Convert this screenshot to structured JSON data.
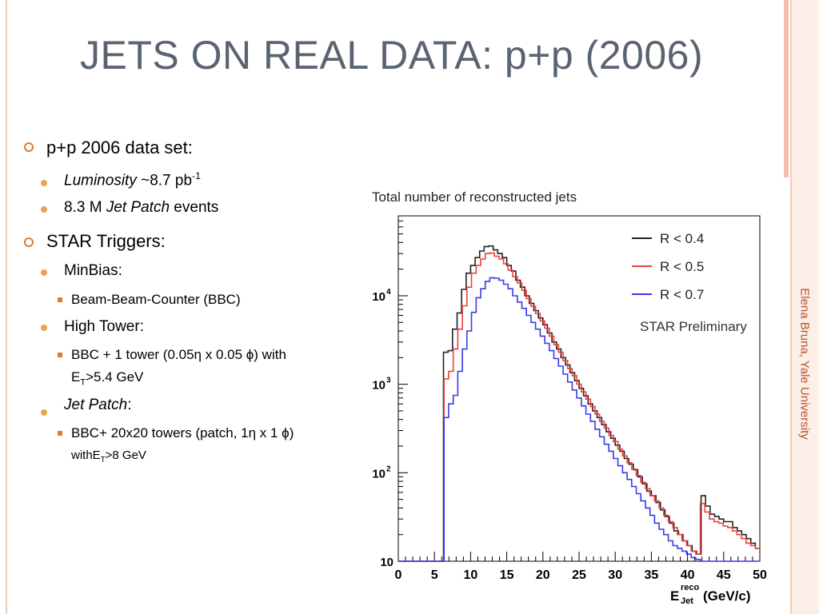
{
  "slide": {
    "title": "JETS ON REAL DATA: p+p (2006)",
    "side_label": "Elena Bruna, Yale University",
    "bullets": {
      "dataset": "p+p 2006 data set:",
      "lumi_italic": "Luminosity",
      "lumi_rest": " ~8.7 pb",
      "lumi_sup": "-1",
      "events_pre": "8.3 M ",
      "events_italic": "Jet Patch",
      "events_post": " events",
      "triggers": "STAR Triggers:",
      "minbias": "MinBias:",
      "bbc": "Beam-Beam-Counter (BBC)",
      "hightower": "High Tower:",
      "ht_line1": "BBC + 1 tower (0.05η x 0.05 ϕ) with",
      "ht_line2_pre": "E",
      "ht_line2_sub": "T",
      "ht_line2_post": ">5.4 GeV",
      "jetpatch_italic": "Jet Patch",
      "jetpatch_colon": ":",
      "jp_line1": "BBC+ 20x20 towers (patch, 1η x 1 ϕ)",
      "jp_line2_pre": "withE",
      "jp_line2_sub": "T",
      "jp_line2_post": ">8 GeV"
    }
  },
  "chart_data": {
    "type": "line",
    "title": "Total number of reconstructed jets",
    "xlabel": "E",
    "xlabel_sup": "reco",
    "xlabel_sub": "Jet",
    "xlabel_unit": " (GeV/c)",
    "annotation": "STAR Preliminary",
    "y_scale": "log",
    "ylim": [
      10,
      80000
    ],
    "xlim": [
      0,
      50
    ],
    "x_ticks": [
      "0",
      "5",
      "10",
      "15",
      "20",
      "25",
      "30",
      "35",
      "40",
      "45",
      "50"
    ],
    "y_ticks": [
      {
        "value": 10,
        "label": "10"
      },
      {
        "value": 100,
        "label": "10",
        "sup": "2"
      },
      {
        "value": 1000,
        "label": "10",
        "sup": "3"
      },
      {
        "value": 10000,
        "label": "10",
        "sup": "4"
      }
    ],
    "legend_position": "top-right",
    "series": [
      {
        "name": "R < 0.4",
        "color": "#222222",
        "values": [
          10,
          10,
          10,
          10,
          10,
          10,
          10,
          10,
          10,
          10,
          2300,
          2400,
          4200,
          6400,
          11800,
          18000,
          22000,
          27000,
          32000,
          36000,
          36500,
          33000,
          30000,
          27000,
          22000,
          19000,
          15000,
          12500,
          10000,
          8200,
          6800,
          5600,
          4700,
          3800,
          3000,
          2500,
          2000,
          1650,
          1350,
          1100,
          900,
          740,
          600,
          500,
          420,
          350,
          290,
          245,
          205,
          175,
          145,
          125,
          108,
          90,
          75,
          62,
          55,
          46,
          38,
          32,
          27,
          22,
          20,
          17,
          15,
          13,
          12,
          55,
          42,
          34,
          32,
          30,
          28,
          28,
          24,
          22,
          20,
          18,
          16,
          14
        ]
      },
      {
        "name": "R < 0.5",
        "color": "#e8403f",
        "values": [
          10,
          10,
          10,
          10,
          10,
          10,
          10,
          10,
          10,
          10,
          1150,
          1400,
          2500,
          4200,
          7700,
          12500,
          18000,
          22000,
          26000,
          30000,
          30500,
          28000,
          26000,
          23000,
          19500,
          16500,
          14000,
          11500,
          9300,
          7600,
          6300,
          5200,
          4300,
          3500,
          2800,
          2300,
          1850,
          1500,
          1250,
          1000,
          820,
          680,
          560,
          460,
          380,
          320,
          265,
          225,
          185,
          155,
          130,
          110,
          93,
          78,
          66,
          55,
          48,
          40,
          33,
          28,
          24,
          20,
          17,
          15,
          13,
          12,
          45,
          36,
          30,
          28,
          27,
          25,
          24,
          22,
          20,
          18,
          16,
          15,
          14
        ]
      },
      {
        "name": "R < 0.7",
        "color": "#3a3ae8",
        "values": [
          10,
          10,
          10,
          10,
          10,
          10,
          10,
          10,
          10,
          10,
          420,
          600,
          750,
          1400,
          2500,
          4000,
          6500,
          9500,
          12000,
          14500,
          16000,
          15800,
          15000,
          13500,
          12000,
          10000,
          8500,
          7200,
          6000,
          5000,
          4200,
          3500,
          2900,
          2400,
          1950,
          1600,
          1300,
          1060,
          860,
          700,
          570,
          460,
          380,
          310,
          255,
          210,
          175,
          145,
          120,
          100,
          84,
          70,
          58,
          48,
          40,
          33,
          27,
          23,
          20,
          17,
          15,
          14,
          13,
          12,
          11,
          10.5,
          10,
          10,
          10,
          10,
          10,
          10,
          10,
          10,
          10,
          10,
          10,
          10,
          10
        ]
      }
    ]
  }
}
